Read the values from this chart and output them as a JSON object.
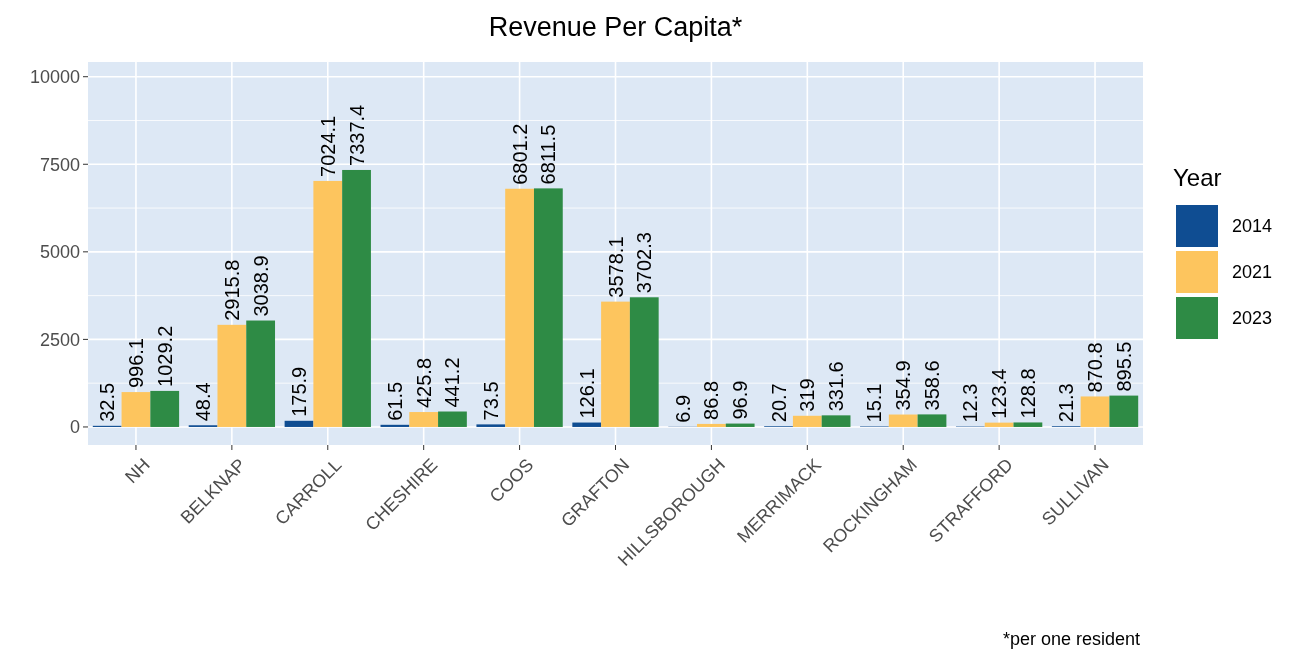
{
  "chart_data": {
    "type": "bar",
    "title": "Revenue Per Capita*",
    "legend_title": "Year",
    "annotations": [
      "*per one resident"
    ],
    "categories": [
      "NH",
      "BELKNAP",
      "CARROLL",
      "CHESHIRE",
      "COOS",
      "GRAFTON",
      "HILLSBOROUGH",
      "MERRIMACK",
      "ROCKINGHAM",
      "STRAFFORD",
      "SULLIVAN"
    ],
    "series": [
      {
        "name": "2014",
        "color": "#0f4d92",
        "values": [
          32.5,
          48.4,
          175.9,
          61.5,
          73.5,
          126.1,
          6.9,
          20.7,
          15.1,
          12.3,
          21.3
        ]
      },
      {
        "name": "2021",
        "color": "#fdc55e",
        "values": [
          996.1,
          2915.8,
          7024.1,
          425.8,
          6801.2,
          3578.1,
          86.8,
          319,
          354.9,
          123.4,
          870.8
        ]
      },
      {
        "name": "2023",
        "color": "#2e8b45",
        "values": [
          1029.2,
          3038.9,
          7337.4,
          441.2,
          6811.5,
          3702.3,
          96.9,
          331.6,
          358.6,
          128.8,
          895.5
        ]
      }
    ],
    "ylim": [
      -515,
      10420
    ],
    "yticks": [
      0,
      2500,
      5000,
      7500,
      10000
    ],
    "grid": true,
    "legend": "right",
    "data_labels": true
  }
}
